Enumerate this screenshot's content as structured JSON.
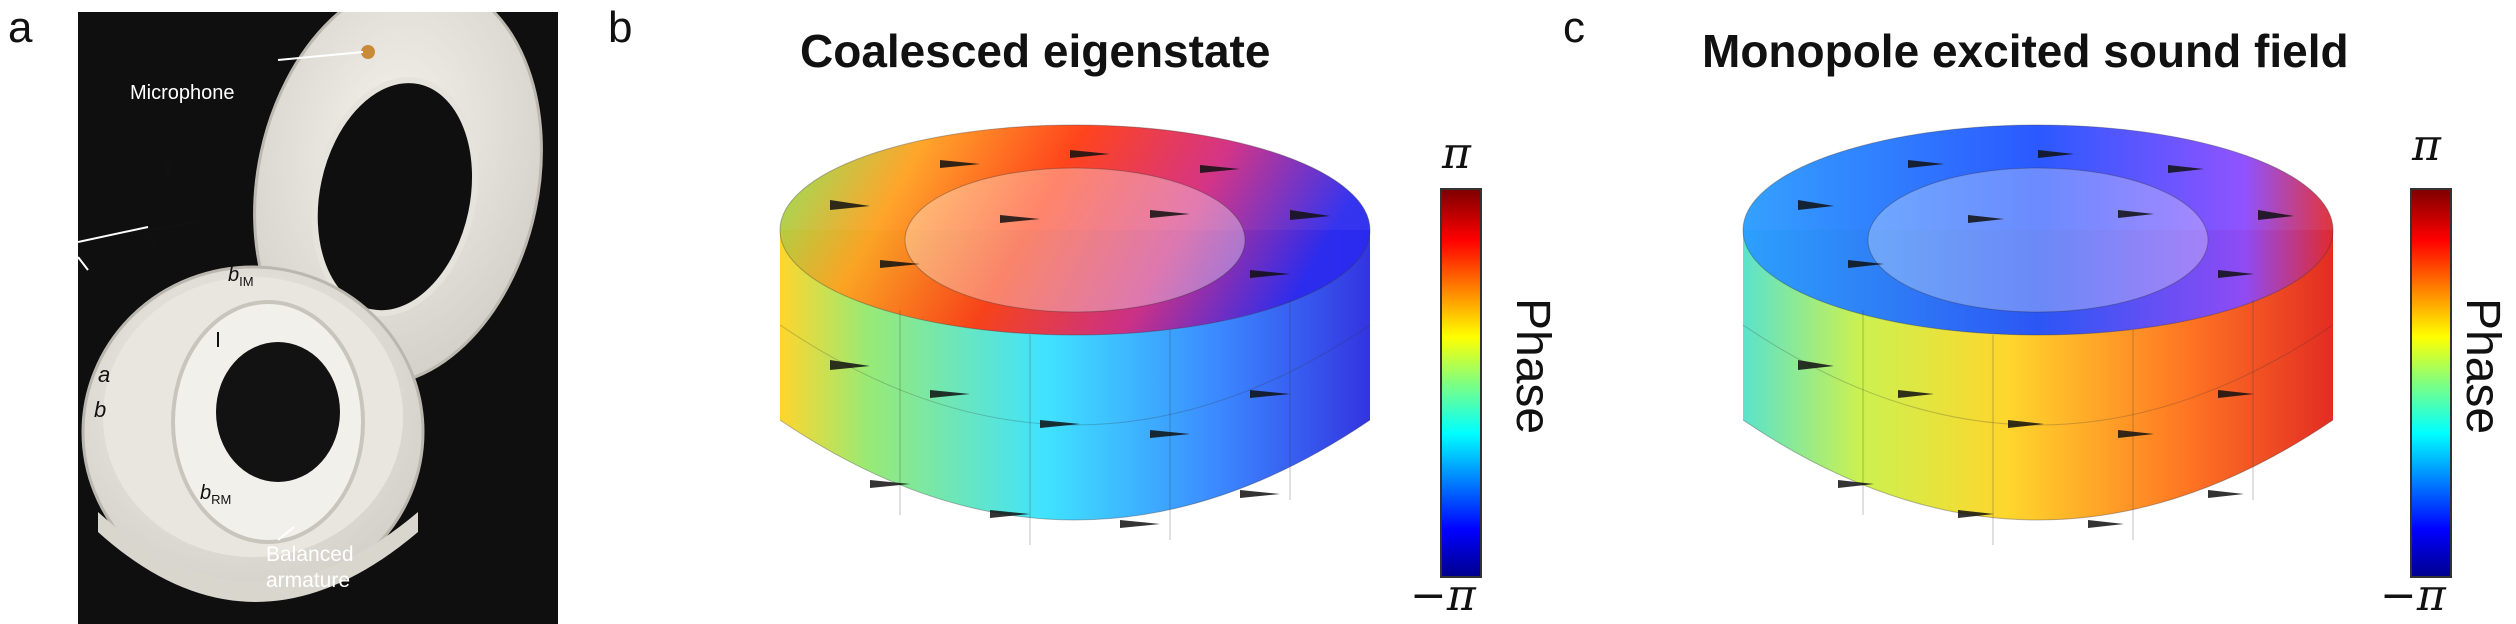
{
  "panels": {
    "a": {
      "letter": "a",
      "labels": {
        "microphone": "Microphone",
        "b_im_base": "b",
        "b_im_sub": "IM",
        "a": "a",
        "b": "b",
        "b_rm_base": "b",
        "b_rm_sub": "RM",
        "balanced_line1": "Balanced",
        "balanced_line2": "armature"
      }
    },
    "b": {
      "letter": "b",
      "title": "Coalesced eigenstate",
      "colorbar": {
        "top": "π",
        "bottom": "−π",
        "label": "Phase"
      }
    },
    "c": {
      "letter": "c",
      "title": "Monopole excited sound field",
      "colorbar": {
        "top": "π",
        "bottom": "−π",
        "label": "Phase"
      }
    }
  },
  "colors": {
    "jet": [
      "#00008f",
      "#0000ff",
      "#0080ff",
      "#00ffff",
      "#80ff80",
      "#ffff00",
      "#ff8000",
      "#ff0000",
      "#800000"
    ]
  }
}
